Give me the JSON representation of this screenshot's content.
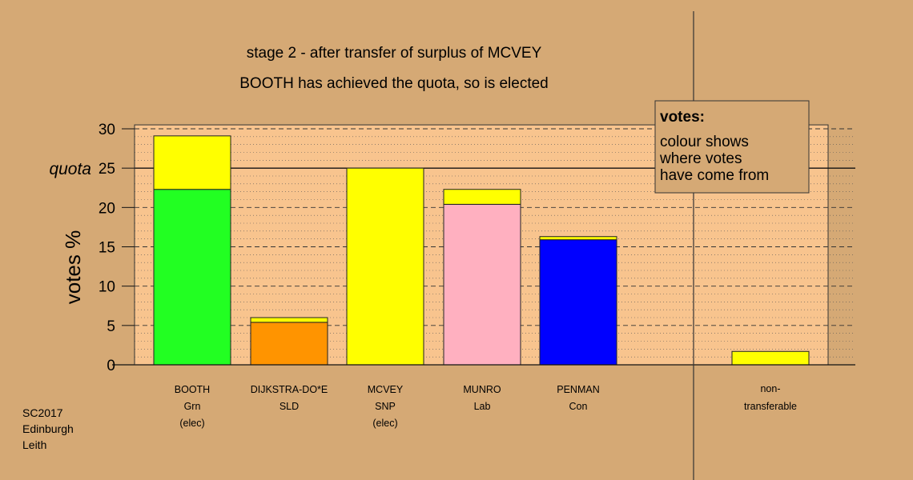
{
  "titles": {
    "line1": "stage 2 - after transfer of surplus of MCVEY",
    "line2": "BOOTH has achieved the quota, so is elected"
  },
  "footer": {
    "line1": "SC2017",
    "line2": "Edinburgh",
    "line3": "Leith"
  },
  "legend": {
    "title": "votes:",
    "lines": [
      "colour shows",
      "where votes",
      "have come from"
    ]
  },
  "colors": {
    "background": "#d5a975",
    "plot_area": "#f8c48e",
    "Grn": "#22ff22",
    "SLD": "#ff9400",
    "SNP": "#ffff00",
    "Lab": "#ffb0c0",
    "Con": "#0000ff"
  },
  "chart_data": {
    "type": "bar",
    "stacked": true,
    "ylabel": "votes %",
    "ylim": [
      0,
      30
    ],
    "yticks": [
      0,
      5,
      10,
      15,
      20,
      25,
      30
    ],
    "quota": {
      "label": "quota",
      "value": 25
    },
    "grid": "minor dotted every 1, dashed every 5, solid at quota",
    "candidates": [
      {
        "name": "BOOTH",
        "party": "Grn",
        "status": "(elec)",
        "segments": [
          {
            "from": "Grn",
            "value": 22.3
          },
          {
            "from": "SNP",
            "value": 6.8
          }
        ]
      },
      {
        "name": "DIJKSTRA-DO*E",
        "party": "SLD",
        "status": "",
        "segments": [
          {
            "from": "SLD",
            "value": 5.4
          },
          {
            "from": "SNP",
            "value": 0.6
          }
        ]
      },
      {
        "name": "MCVEY",
        "party": "SNP",
        "status": "(elec)",
        "segments": [
          {
            "from": "SNP",
            "value": 25.0
          }
        ]
      },
      {
        "name": "MUNRO",
        "party": "Lab",
        "status": "",
        "segments": [
          {
            "from": "Lab",
            "value": 20.4
          },
          {
            "from": "SNP",
            "value": 1.9
          }
        ]
      },
      {
        "name": "PENMAN",
        "party": "Con",
        "status": "",
        "segments": [
          {
            "from": "Con",
            "value": 15.9
          },
          {
            "from": "SNP",
            "value": 0.4
          }
        ]
      }
    ],
    "nontransferable": {
      "label1": "non-",
      "label2": "transferable",
      "segments": [
        {
          "from": "SNP",
          "value": 1.7
        }
      ]
    }
  }
}
